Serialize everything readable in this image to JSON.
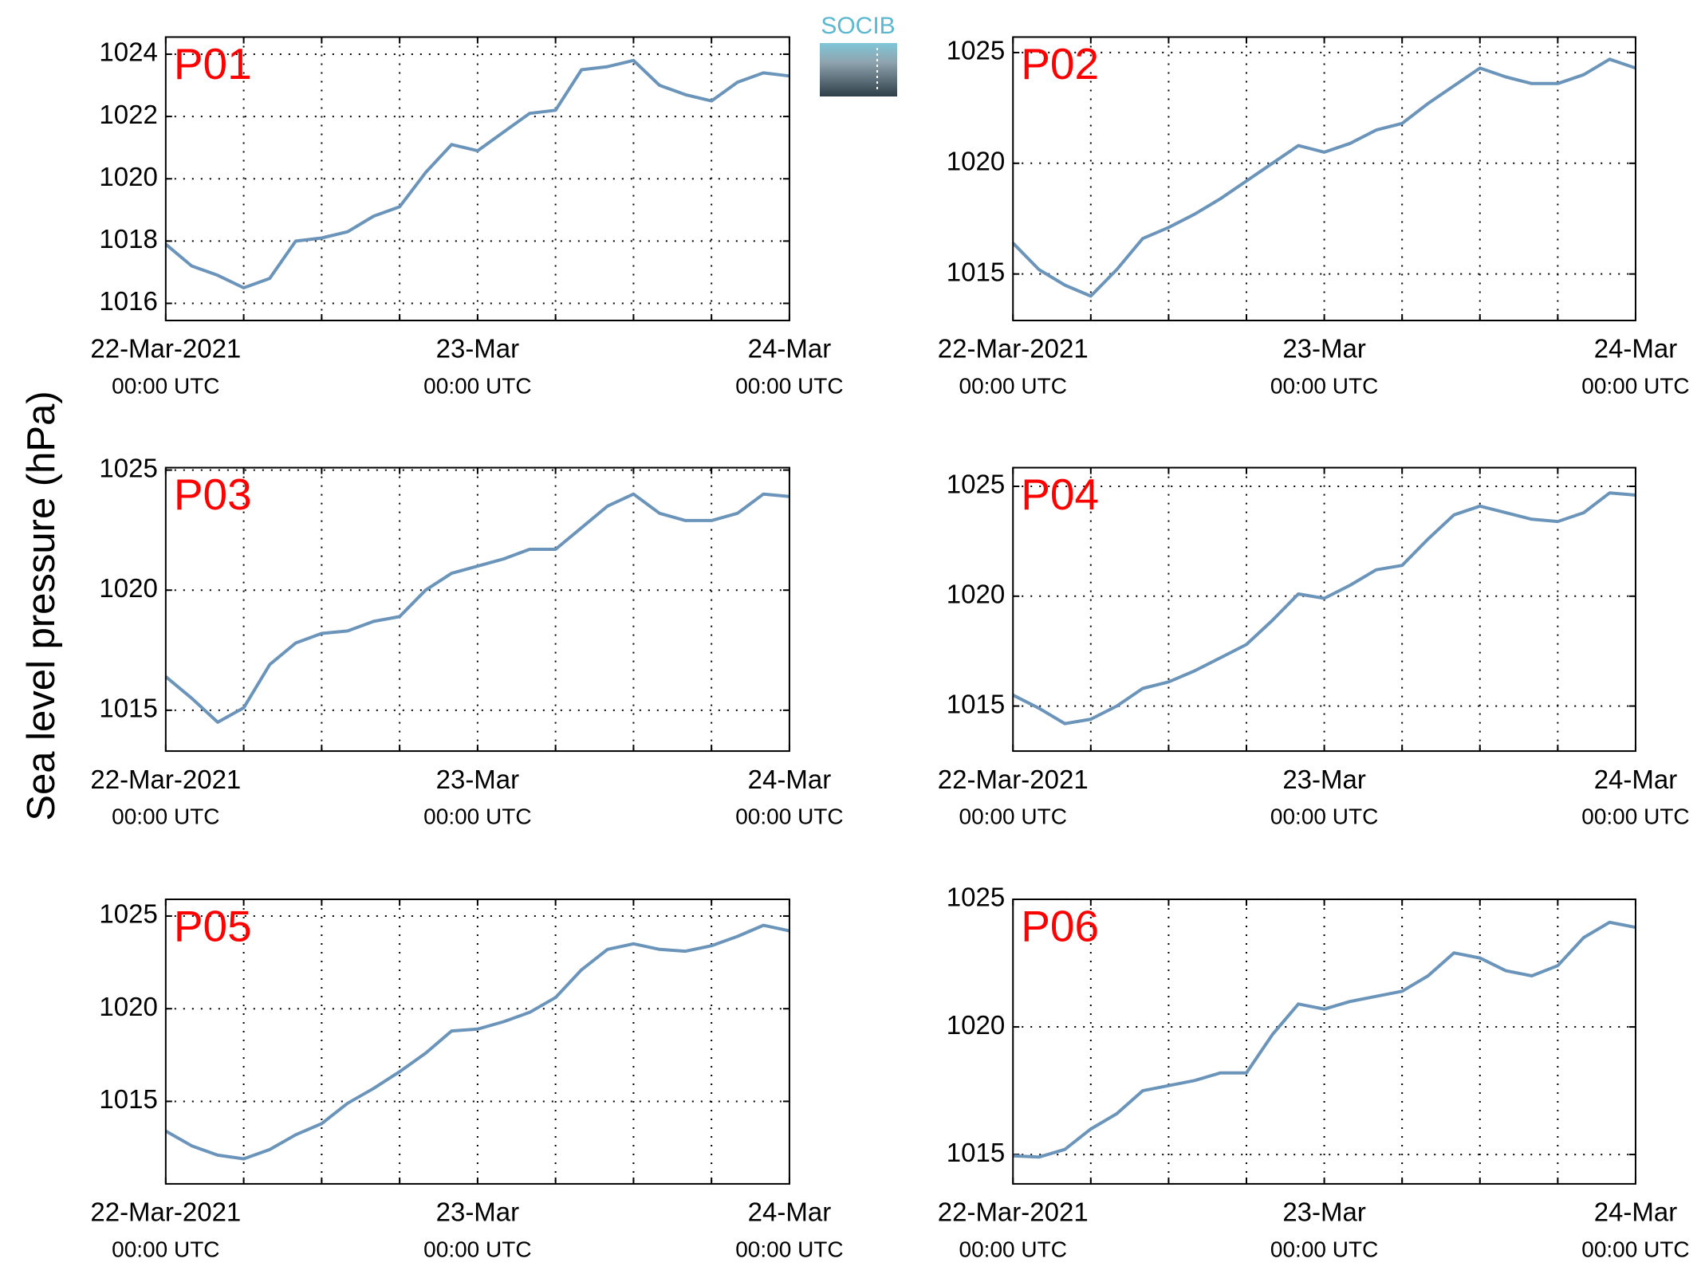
{
  "ylabel": "Sea level pressure (hPa)",
  "logo": "SOCIB",
  "chart_data": [
    {
      "type": "line",
      "title": "P01",
      "title_color": "#ff0000",
      "grid": true,
      "x": [
        "2021-03-22T00:00",
        "2021-03-22T02:00",
        "2021-03-22T04:00",
        "2021-03-22T06:00",
        "2021-03-22T08:00",
        "2021-03-22T10:00",
        "2021-03-22T12:00",
        "2021-03-22T14:00",
        "2021-03-22T16:00",
        "2021-03-22T18:00",
        "2021-03-22T20:00",
        "2021-03-22T22:00",
        "2021-03-23T00:00",
        "2021-03-23T02:00",
        "2021-03-23T04:00",
        "2021-03-23T06:00",
        "2021-03-23T08:00",
        "2021-03-23T10:00",
        "2021-03-23T12:00",
        "2021-03-23T14:00",
        "2021-03-23T16:00",
        "2021-03-23T18:00",
        "2021-03-23T20:00",
        "2021-03-23T22:00",
        "2021-03-24T00:00"
      ],
      "series": [
        {
          "color": "#6a94b9",
          "values": [
            1017.9,
            1017.2,
            1016.9,
            1016.5,
            1016.8,
            1018.0,
            1018.1,
            1018.3,
            1018.8,
            1019.1,
            1020.2,
            1021.1,
            1020.9,
            1021.5,
            1022.1,
            1022.2,
            1023.5,
            1023.6,
            1023.8,
            1023.0,
            1022.7,
            1022.5,
            1023.1,
            1023.4,
            1023.3
          ]
        }
      ],
      "xlim": [
        "2021-03-22T00:00",
        "2021-03-24T00:00"
      ],
      "xticks": [
        {
          "value": "2021-03-22T00:00",
          "label": "22-Mar-2021",
          "sublabel": "00:00 UTC"
        },
        "2021-03-22T06:00",
        "2021-03-22T12:00",
        "2021-03-22T18:00",
        {
          "value": "2021-03-23T00:00",
          "label": "23-Mar",
          "sublabel": "00:00 UTC"
        },
        "2021-03-23T06:00",
        "2021-03-23T12:00",
        "2021-03-23T18:00",
        {
          "value": "2021-03-24T00:00",
          "label": "24-Mar",
          "sublabel": "00:00 UTC"
        }
      ],
      "ylim": [
        1015.45,
        1024.55
      ],
      "yticks": [
        1016,
        1018,
        1020,
        1022,
        1024
      ]
    },
    {
      "type": "line",
      "title": "P02",
      "title_color": "#ff0000",
      "grid": true,
      "x": [
        "2021-03-22T00:00",
        "2021-03-22T02:00",
        "2021-03-22T04:00",
        "2021-03-22T06:00",
        "2021-03-22T08:00",
        "2021-03-22T10:00",
        "2021-03-22T12:00",
        "2021-03-22T14:00",
        "2021-03-22T16:00",
        "2021-03-22T18:00",
        "2021-03-22T20:00",
        "2021-03-22T22:00",
        "2021-03-23T00:00",
        "2021-03-23T02:00",
        "2021-03-23T04:00",
        "2021-03-23T06:00",
        "2021-03-23T08:00",
        "2021-03-23T10:00",
        "2021-03-23T12:00",
        "2021-03-23T14:00",
        "2021-03-23T16:00",
        "2021-03-23T18:00",
        "2021-03-23T20:00",
        "2021-03-23T22:00",
        "2021-03-24T00:00"
      ],
      "series": [
        {
          "color": "#6a94b9",
          "values": [
            1016.4,
            1015.2,
            1014.5,
            1014.0,
            1015.2,
            1016.6,
            1017.1,
            1017.7,
            1018.4,
            1019.2,
            1020.0,
            1020.8,
            1020.5,
            1020.9,
            1021.5,
            1021.8,
            1022.7,
            1023.5,
            1024.3,
            1023.9,
            1023.6,
            1023.6,
            1024.0,
            1024.7,
            1024.3
          ]
        }
      ],
      "xlim": [
        "2021-03-22T00:00",
        "2021-03-24T00:00"
      ],
      "xticks": [
        {
          "value": "2021-03-22T00:00",
          "label": "22-Mar-2021",
          "sublabel": "00:00 UTC"
        },
        "2021-03-22T06:00",
        "2021-03-22T12:00",
        "2021-03-22T18:00",
        {
          "value": "2021-03-23T00:00",
          "label": "23-Mar",
          "sublabel": "00:00 UTC"
        },
        "2021-03-23T06:00",
        "2021-03-23T12:00",
        "2021-03-23T18:00",
        {
          "value": "2021-03-24T00:00",
          "label": "24-Mar",
          "sublabel": "00:00 UTC"
        }
      ],
      "ylim": [
        1012.9,
        1025.7
      ],
      "yticks": [
        1015,
        1020,
        1025
      ]
    },
    {
      "type": "line",
      "title": "P03",
      "title_color": "#ff0000",
      "grid": true,
      "x": [
        "2021-03-22T00:00",
        "2021-03-22T02:00",
        "2021-03-22T04:00",
        "2021-03-22T06:00",
        "2021-03-22T08:00",
        "2021-03-22T10:00",
        "2021-03-22T12:00",
        "2021-03-22T14:00",
        "2021-03-22T16:00",
        "2021-03-22T18:00",
        "2021-03-22T20:00",
        "2021-03-22T22:00",
        "2021-03-23T00:00",
        "2021-03-23T02:00",
        "2021-03-23T04:00",
        "2021-03-23T06:00",
        "2021-03-23T08:00",
        "2021-03-23T10:00",
        "2021-03-23T12:00",
        "2021-03-23T14:00",
        "2021-03-23T16:00",
        "2021-03-23T18:00",
        "2021-03-23T20:00",
        "2021-03-23T22:00",
        "2021-03-24T00:00"
      ],
      "series": [
        {
          "color": "#6a94b9",
          "values": [
            1016.4,
            1015.5,
            1014.5,
            1015.1,
            1016.9,
            1017.8,
            1018.2,
            1018.3,
            1018.7,
            1018.9,
            1020.0,
            1020.7,
            1021.0,
            1021.3,
            1021.7,
            1021.7,
            1022.6,
            1023.5,
            1024.0,
            1023.2,
            1022.9,
            1022.9,
            1023.2,
            1024.0,
            1023.9
          ]
        }
      ],
      "xlim": [
        "2021-03-22T00:00",
        "2021-03-24T00:00"
      ],
      "xticks": [
        {
          "value": "2021-03-22T00:00",
          "label": "22-Mar-2021",
          "sublabel": "00:00 UTC"
        },
        "2021-03-22T06:00",
        "2021-03-22T12:00",
        "2021-03-22T18:00",
        {
          "value": "2021-03-23T00:00",
          "label": "23-Mar",
          "sublabel": "00:00 UTC"
        },
        "2021-03-23T06:00",
        "2021-03-23T12:00",
        "2021-03-23T18:00",
        {
          "value": "2021-03-24T00:00",
          "label": "24-Mar",
          "sublabel": "00:00 UTC"
        }
      ],
      "ylim": [
        1013.3,
        1025.1
      ],
      "yticks": [
        1015,
        1020,
        1025
      ]
    },
    {
      "type": "line",
      "title": "P04",
      "title_color": "#ff0000",
      "grid": true,
      "x": [
        "2021-03-22T00:00",
        "2021-03-22T02:00",
        "2021-03-22T04:00",
        "2021-03-22T06:00",
        "2021-03-22T08:00",
        "2021-03-22T10:00",
        "2021-03-22T12:00",
        "2021-03-22T14:00",
        "2021-03-22T16:00",
        "2021-03-22T18:00",
        "2021-03-22T20:00",
        "2021-03-22T22:00",
        "2021-03-23T00:00",
        "2021-03-23T02:00",
        "2021-03-23T04:00",
        "2021-03-23T06:00",
        "2021-03-23T08:00",
        "2021-03-23T10:00",
        "2021-03-23T12:00",
        "2021-03-23T14:00",
        "2021-03-23T16:00",
        "2021-03-23T18:00",
        "2021-03-23T20:00",
        "2021-03-23T22:00",
        "2021-03-24T00:00"
      ],
      "series": [
        {
          "color": "#6a94b9",
          "values": [
            1015.5,
            1014.9,
            1014.2,
            1014.4,
            1015.0,
            1015.8,
            1016.1,
            1016.6,
            1017.2,
            1017.8,
            1018.9,
            1020.1,
            1019.9,
            1020.5,
            1021.2,
            1021.4,
            1022.6,
            1023.7,
            1024.1,
            1023.8,
            1023.5,
            1023.4,
            1023.8,
            1024.7,
            1024.6
          ]
        }
      ],
      "xlim": [
        "2021-03-22T00:00",
        "2021-03-24T00:00"
      ],
      "xticks": [
        {
          "value": "2021-03-22T00:00",
          "label": "22-Mar-2021",
          "sublabel": "00:00 UTC"
        },
        "2021-03-22T06:00",
        "2021-03-22T12:00",
        "2021-03-22T18:00",
        {
          "value": "2021-03-23T00:00",
          "label": "23-Mar",
          "sublabel": "00:00 UTC"
        },
        "2021-03-23T06:00",
        "2021-03-23T12:00",
        "2021-03-23T18:00",
        {
          "value": "2021-03-24T00:00",
          "label": "24-Mar",
          "sublabel": "00:00 UTC"
        }
      ],
      "ylim": [
        1012.95,
        1025.85
      ],
      "yticks": [
        1015,
        1020,
        1025
      ]
    },
    {
      "type": "line",
      "title": "P05",
      "title_color": "#ff0000",
      "grid": true,
      "x": [
        "2021-03-22T00:00",
        "2021-03-22T02:00",
        "2021-03-22T04:00",
        "2021-03-22T06:00",
        "2021-03-22T08:00",
        "2021-03-22T10:00",
        "2021-03-22T12:00",
        "2021-03-22T14:00",
        "2021-03-22T16:00",
        "2021-03-22T18:00",
        "2021-03-22T20:00",
        "2021-03-22T22:00",
        "2021-03-23T00:00",
        "2021-03-23T02:00",
        "2021-03-23T04:00",
        "2021-03-23T06:00",
        "2021-03-23T08:00",
        "2021-03-23T10:00",
        "2021-03-23T12:00",
        "2021-03-23T14:00",
        "2021-03-23T16:00",
        "2021-03-23T18:00",
        "2021-03-23T20:00",
        "2021-03-23T22:00",
        "2021-03-24T00:00"
      ],
      "series": [
        {
          "color": "#6a94b9",
          "values": [
            1013.4,
            1012.6,
            1012.1,
            1011.9,
            1012.4,
            1013.2,
            1013.8,
            1014.9,
            1015.7,
            1016.6,
            1017.6,
            1018.8,
            1018.9,
            1019.3,
            1019.8,
            1020.6,
            1022.1,
            1023.2,
            1023.5,
            1023.2,
            1023.1,
            1023.4,
            1023.9,
            1024.5,
            1024.2
          ]
        }
      ],
      "xlim": [
        "2021-03-22T00:00",
        "2021-03-24T00:00"
      ],
      "xticks": [
        {
          "value": "2021-03-22T00:00",
          "label": "22-Mar-2021",
          "sublabel": "00:00 UTC"
        },
        "2021-03-22T06:00",
        "2021-03-22T12:00",
        "2021-03-22T18:00",
        {
          "value": "2021-03-23T00:00",
          "label": "23-Mar",
          "sublabel": "00:00 UTC"
        },
        "2021-03-23T06:00",
        "2021-03-23T12:00",
        "2021-03-23T18:00",
        {
          "value": "2021-03-24T00:00",
          "label": "24-Mar",
          "sublabel": "00:00 UTC"
        }
      ],
      "ylim": [
        1010.55,
        1025.9
      ],
      "yticks": [
        1015,
        1020,
        1025
      ]
    },
    {
      "type": "line",
      "title": "P06",
      "title_color": "#ff0000",
      "grid": true,
      "x": [
        "2021-03-22T00:00",
        "2021-03-22T02:00",
        "2021-03-22T04:00",
        "2021-03-22T06:00",
        "2021-03-22T08:00",
        "2021-03-22T10:00",
        "2021-03-22T12:00",
        "2021-03-22T14:00",
        "2021-03-22T16:00",
        "2021-03-22T18:00",
        "2021-03-22T20:00",
        "2021-03-22T22:00",
        "2021-03-23T00:00",
        "2021-03-23T02:00",
        "2021-03-23T04:00",
        "2021-03-23T06:00",
        "2021-03-23T08:00",
        "2021-03-23T10:00",
        "2021-03-23T12:00",
        "2021-03-23T14:00",
        "2021-03-23T16:00",
        "2021-03-23T18:00",
        "2021-03-23T20:00",
        "2021-03-23T22:00",
        "2021-03-24T00:00"
      ],
      "series": [
        {
          "color": "#6a94b9",
          "values": [
            1014.95,
            1014.9,
            1015.2,
            1016.0,
            1016.6,
            1017.5,
            1017.7,
            1017.9,
            1018.2,
            1018.2,
            1019.7,
            1020.9,
            1020.7,
            1021.0,
            1021.2,
            1021.4,
            1022.0,
            1022.9,
            1022.7,
            1022.2,
            1022.0,
            1022.4,
            1023.5,
            1024.1,
            1023.9
          ]
        }
      ],
      "xlim": [
        "2021-03-22T00:00",
        "2021-03-24T00:00"
      ],
      "xticks": [
        {
          "value": "2021-03-22T00:00",
          "label": "22-Mar-2021",
          "sublabel": "00:00 UTC"
        },
        "2021-03-22T06:00",
        "2021-03-22T12:00",
        "2021-03-22T18:00",
        {
          "value": "2021-03-23T00:00",
          "label": "23-Mar",
          "sublabel": "00:00 UTC"
        },
        "2021-03-23T06:00",
        "2021-03-23T12:00",
        "2021-03-23T18:00",
        {
          "value": "2021-03-24T00:00",
          "label": "24-Mar",
          "sublabel": "00:00 UTC"
        }
      ],
      "ylim": [
        1013.85,
        1025
      ],
      "yticks": [
        1015,
        1020,
        1025
      ]
    }
  ]
}
